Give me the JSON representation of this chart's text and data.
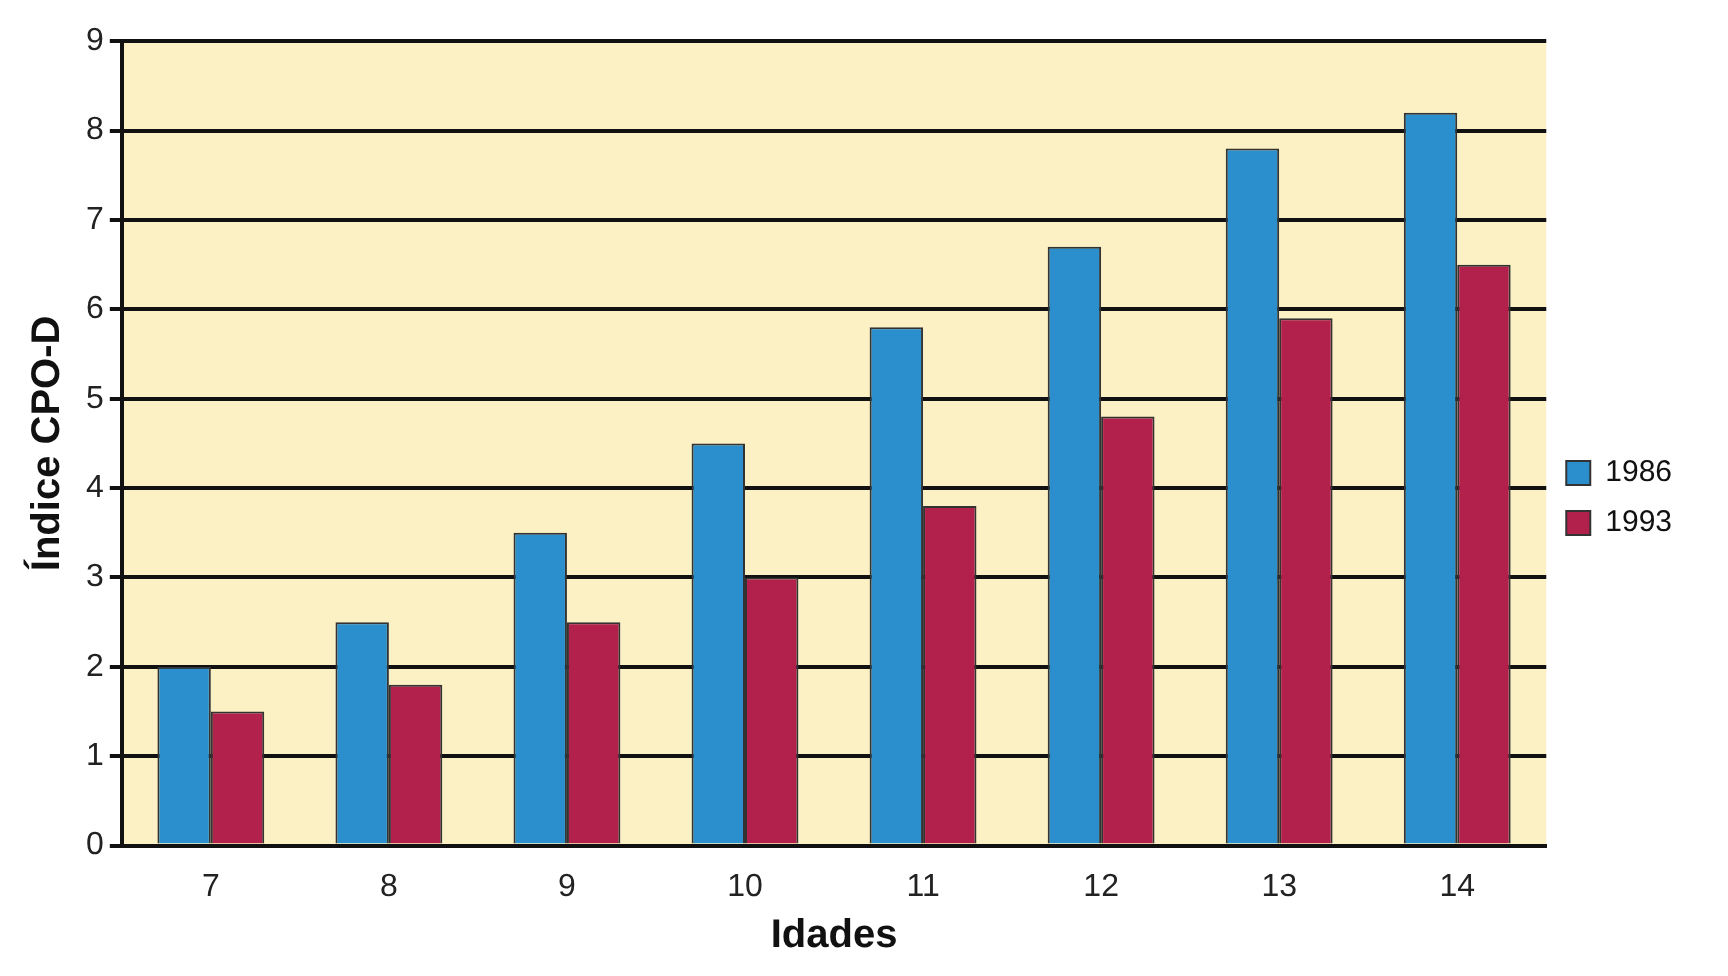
{
  "chart_data": {
    "type": "bar",
    "xlabel": "Idades",
    "ylabel": "Índice CPO-D",
    "categories": [
      "7",
      "8",
      "9",
      "10",
      "11",
      "12",
      "13",
      "14"
    ],
    "series": [
      {
        "name": "1986",
        "color": "#2a8fcc",
        "values": [
          2,
          2.5,
          3.5,
          4.5,
          5.8,
          6.7,
          7.8,
          8.2
        ]
      },
      {
        "name": "1993",
        "color": "#b2204c",
        "values": [
          1.5,
          1.8,
          2.5,
          3,
          3.8,
          4.8,
          5.9,
          6.5
        ]
      }
    ],
    "ylim": [
      0,
      9
    ],
    "yticks": [
      0,
      1,
      2,
      3,
      4,
      5,
      6,
      7,
      8,
      9
    ],
    "grid": "y",
    "legend": "right"
  }
}
